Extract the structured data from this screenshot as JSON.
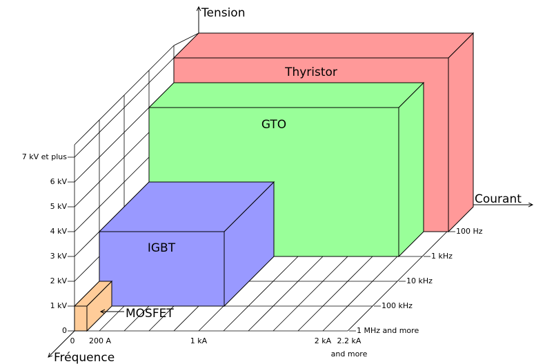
{
  "axes": {
    "voltage": {
      "title": "Tension",
      "ticks": [
        "0",
        "1 kV",
        "2 kV",
        "3 kV",
        "4 kV",
        "5 kV",
        "6 kV",
        "7 kV et plus"
      ]
    },
    "current": {
      "title": "Courant",
      "ticks": [
        "0",
        "200 A",
        "1 kA",
        "2 kA",
        "2.2 kA",
        "and more"
      ]
    },
    "frequency": {
      "title": "Fréquence",
      "ticks": [
        "100 Hz",
        "1 kHz",
        "10 kHz",
        "100 kHz",
        "1 MHz and more"
      ]
    }
  },
  "devices": [
    {
      "label": "Thyristor"
    },
    {
      "label": "GTO"
    },
    {
      "label": "IGBT"
    },
    {
      "label": "MOSFET"
    }
  ]
}
